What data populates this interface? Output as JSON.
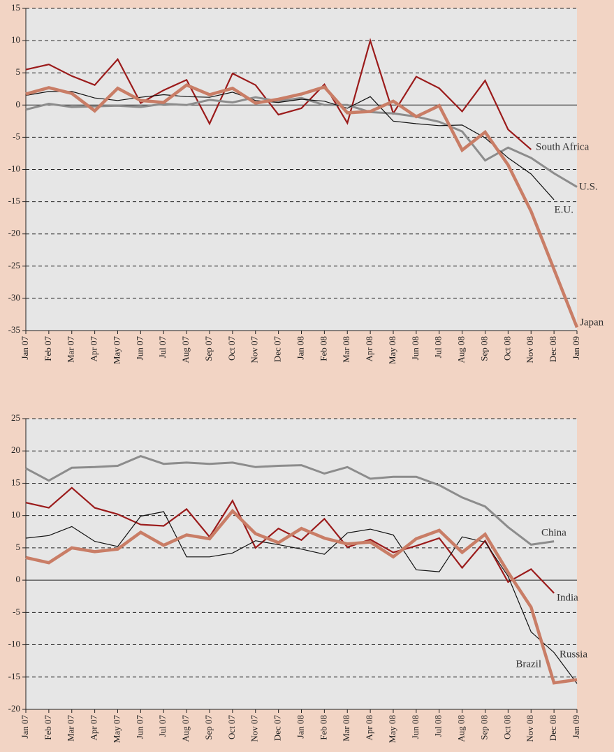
{
  "chart_data": [
    {
      "type": "line",
      "categories": [
        "Jan 07",
        "Feb 07",
        "Mar 07",
        "Apr 07",
        "May 07",
        "Jun 07",
        "Jul 07",
        "Aug 07",
        "Sep 07",
        "Oct 07",
        "Nov 07",
        "Dec 07",
        "Jan 08",
        "Feb 08",
        "Mar 08",
        "Apr 08",
        "May 08",
        "Jun 08",
        "Jul 08",
        "Aug 08",
        "Sep 08",
        "Oct 08",
        "Nov 08",
        "Dec 08",
        "Jan 09"
      ],
      "ylim": [
        -35,
        15
      ],
      "yticks": [
        15,
        10,
        5,
        0,
        -5,
        -10,
        -15,
        -20,
        -25,
        -30,
        -35
      ],
      "grid": true,
      "series": [
        {
          "name": "South Africa",
          "color": "#9b1b1b",
          "values": [
            5.5,
            6.3,
            4.5,
            3.1,
            7.1,
            0.3,
            2.3,
            3.9,
            -2.9,
            4.9,
            3.1,
            -1.5,
            -0.5,
            3.2,
            -2.8,
            10.0,
            -1.3,
            4.4,
            2.6,
            -1.0,
            3.8,
            -3.8,
            -6.9,
            null,
            null
          ]
        },
        {
          "name": "U.S.",
          "color": "#8c8c8c",
          "values": [
            -0.7,
            0.2,
            -0.3,
            -0.2,
            -0.1,
            -0.3,
            0.2,
            0.0,
            0.8,
            0.4,
            1.2,
            0.6,
            1.1,
            0.0,
            0.0,
            -1.1,
            -1.3,
            -1.8,
            -2.6,
            -4.1,
            -8.6,
            -6.6,
            -8.2,
            -10.6,
            -12.7
          ]
        },
        {
          "name": "E.U.",
          "color": "#111111",
          "values": [
            1.5,
            2.1,
            2.1,
            1.1,
            0.7,
            1.2,
            1.6,
            1.3,
            1.2,
            2.0,
            0.7,
            0.4,
            0.9,
            0.6,
            -0.5,
            1.3,
            -2.5,
            -2.9,
            -3.2,
            -3.1,
            -5.1,
            -8.2,
            -10.7,
            -14.7,
            null
          ]
        },
        {
          "name": "Japan",
          "color": "#c97d66",
          "values": [
            1.7,
            2.7,
            1.8,
            -0.9,
            2.6,
            0.7,
            0.4,
            3.1,
            1.6,
            2.6,
            0.3,
            0.9,
            1.7,
            2.8,
            -1.2,
            -1.0,
            0.6,
            -1.8,
            -0.1,
            -7.0,
            -4.2,
            -9.3,
            -16.5,
            -25.5,
            -34.5
          ]
        }
      ]
    },
    {
      "type": "line",
      "categories": [
        "Jan 07",
        "Feb 07",
        "Mar 07",
        "Apr 07",
        "May 07",
        "Jun 07",
        "Jul 07",
        "Aug 07",
        "Sep 07",
        "Oct 07",
        "Nov 07",
        "Dec 07",
        "Jan 08",
        "Feb 08",
        "Mar 08",
        "Apr 08",
        "May 08",
        "Jun 08",
        "Jul 08",
        "Aug 08",
        "Sep 08",
        "Oct 08",
        "Nov 08",
        "Dec 08",
        "Jan 09"
      ],
      "ylim": [
        -20,
        25
      ],
      "yticks": [
        25,
        20,
        15,
        10,
        5,
        0,
        -5,
        -10,
        -15,
        -20
      ],
      "grid": true,
      "series": [
        {
          "name": "China",
          "color": "#8c8c8c",
          "values": [
            17.3,
            15.4,
            17.4,
            17.5,
            17.7,
            19.2,
            18.0,
            18.2,
            18.0,
            18.2,
            17.5,
            17.7,
            17.8,
            16.5,
            17.5,
            15.7,
            16.0,
            16.0,
            14.7,
            12.8,
            11.4,
            8.2,
            5.5,
            6.0,
            null
          ]
        },
        {
          "name": "India",
          "color": "#9b1b1b",
          "values": [
            12.0,
            11.2,
            14.3,
            11.2,
            10.2,
            8.6,
            8.4,
            11.0,
            6.7,
            12.3,
            5.0,
            8.0,
            6.2,
            9.5,
            5.1,
            6.3,
            4.3,
            5.3,
            6.5,
            1.9,
            6.1,
            -0.3,
            1.7,
            -2.0,
            null
          ]
        },
        {
          "name": "Russia",
          "color": "#111111",
          "values": [
            6.5,
            6.9,
            8.3,
            6.0,
            5.2,
            9.9,
            10.6,
            3.6,
            3.6,
            4.2,
            6.1,
            5.5,
            4.8,
            4.0,
            7.3,
            7.9,
            7.0,
            1.6,
            1.3,
            6.7,
            5.9,
            0.6,
            -8.0,
            -11.2,
            -16.0
          ]
        },
        {
          "name": "Brazil",
          "color": "#c97d66",
          "values": [
            3.5,
            2.7,
            5.0,
            4.4,
            4.8,
            7.4,
            5.4,
            7.0,
            6.4,
            10.7,
            7.2,
            5.8,
            8.0,
            6.5,
            5.6,
            5.9,
            3.6,
            6.4,
            7.7,
            4.3,
            7.1,
            1.2,
            -4.2,
            -15.9,
            -15.4
          ]
        }
      ]
    }
  ]
}
